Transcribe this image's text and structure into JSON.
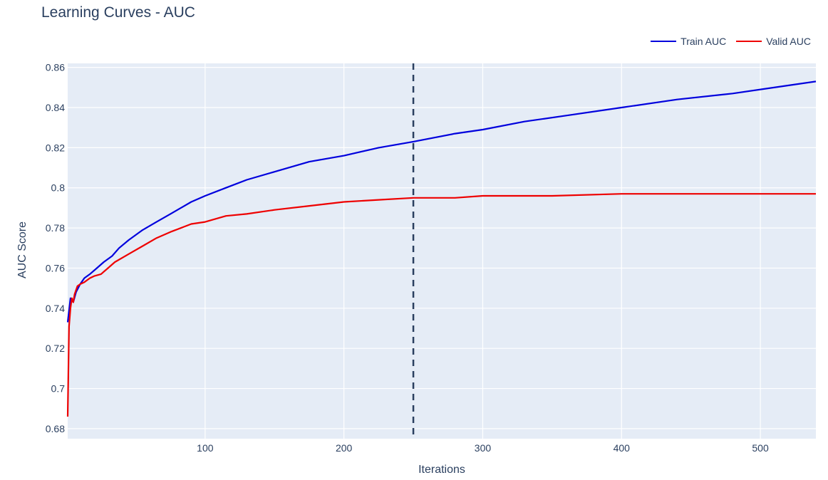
{
  "chart_data": {
    "type": "line",
    "title": "Learning Curves - AUC",
    "xlabel": "Iterations",
    "ylabel": "AUC Score",
    "xlim": [
      1,
      540
    ],
    "ylim": [
      0.675,
      0.862
    ],
    "x_ticks": [
      100,
      200,
      300,
      400,
      500
    ],
    "y_ticks": [
      0.68,
      0.7,
      0.72,
      0.74,
      0.76,
      0.78,
      0.8,
      0.82,
      0.84,
      0.86
    ],
    "y_tick_labels": [
      "0.68",
      "0.7",
      "0.72",
      "0.74",
      "0.76",
      "0.78",
      "0.8",
      "0.82",
      "0.84",
      "0.86"
    ],
    "vline": {
      "x": 250,
      "style": "dashed",
      "color": "#2a3f5f"
    },
    "legend": {
      "placement": "top-right"
    },
    "series": [
      {
        "name": "Train AUC",
        "color": "#0000dd",
        "x": [
          1,
          3,
          5,
          7,
          10,
          13,
          17,
          22,
          27,
          33,
          38,
          45,
          55,
          65,
          75,
          90,
          100,
          115,
          130,
          150,
          175,
          200,
          225,
          250,
          280,
          300,
          330,
          360,
          400,
          440,
          480,
          520,
          540
        ],
        "y": [
          0.733,
          0.745,
          0.743,
          0.748,
          0.752,
          0.755,
          0.757,
          0.76,
          0.763,
          0.766,
          0.77,
          0.774,
          0.779,
          0.783,
          0.787,
          0.793,
          0.796,
          0.8,
          0.804,
          0.808,
          0.813,
          0.816,
          0.82,
          0.823,
          0.827,
          0.829,
          0.833,
          0.836,
          0.84,
          0.844,
          0.847,
          0.851,
          0.853
        ]
      },
      {
        "name": "Valid AUC",
        "color": "#ee0000",
        "x": [
          1,
          2,
          3,
          4,
          5,
          6,
          8,
          10,
          13,
          17,
          20,
          25,
          30,
          35,
          45,
          55,
          65,
          75,
          90,
          100,
          115,
          130,
          150,
          175,
          200,
          225,
          250,
          280,
          300,
          350,
          400,
          450,
          500,
          540
        ],
        "y": [
          0.686,
          0.731,
          0.74,
          0.745,
          0.743,
          0.747,
          0.751,
          0.752,
          0.753,
          0.755,
          0.756,
          0.757,
          0.76,
          0.763,
          0.767,
          0.771,
          0.775,
          0.778,
          0.782,
          0.783,
          0.786,
          0.787,
          0.789,
          0.791,
          0.793,
          0.794,
          0.795,
          0.795,
          0.796,
          0.796,
          0.797,
          0.797,
          0.797,
          0.797
        ]
      }
    ]
  }
}
